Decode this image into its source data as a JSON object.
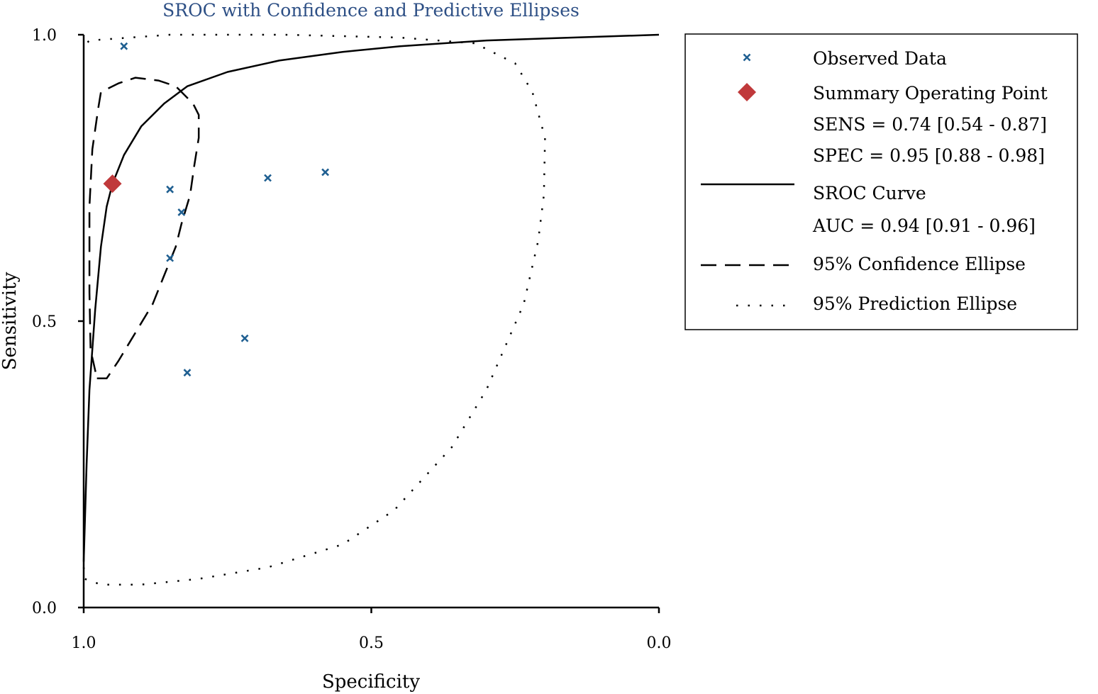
{
  "chart_data": {
    "type": "scatter",
    "title": "SROC with Confidence and Predictive Ellipses",
    "xlabel": "Specificity",
    "ylabel": "Sensitivity",
    "xlim": [
      1.0,
      0.0
    ],
    "ylim": [
      0.0,
      1.0
    ],
    "x_axis_reversed": true,
    "xticks": [
      "1.0",
      "0.5",
      "0.0"
    ],
    "yticks": [
      "0.0",
      "0.5",
      "1.0"
    ],
    "grid": false,
    "legend_position": "right",
    "colors": {
      "title": "#2d4f85",
      "observed": "#1f5f91",
      "summary": "#c0393b",
      "lines": "#000000"
    },
    "series": [
      {
        "name": "Observed Data",
        "type": "scatter",
        "marker": "x",
        "points": [
          {
            "spec": 0.93,
            "sens": 0.98
          },
          {
            "spec": 0.85,
            "sens": 0.73
          },
          {
            "spec": 0.83,
            "sens": 0.69
          },
          {
            "spec": 0.85,
            "sens": 0.61
          },
          {
            "spec": 0.68,
            "sens": 0.75
          },
          {
            "spec": 0.58,
            "sens": 0.76
          },
          {
            "spec": 0.72,
            "sens": 0.47
          },
          {
            "spec": 0.82,
            "sens": 0.41
          }
        ]
      },
      {
        "name": "Summary Operating Point",
        "type": "point",
        "marker": "diamond",
        "points": [
          {
            "spec": 0.95,
            "sens": 0.74
          }
        ]
      },
      {
        "name": "SROC Curve",
        "type": "line",
        "style": "solid",
        "points": [
          {
            "spec": 1.0,
            "sens": 0.08
          },
          {
            "spec": 0.995,
            "sens": 0.25
          },
          {
            "spec": 0.99,
            "sens": 0.38
          },
          {
            "spec": 0.98,
            "sens": 0.52
          },
          {
            "spec": 0.97,
            "sens": 0.63
          },
          {
            "spec": 0.96,
            "sens": 0.7
          },
          {
            "spec": 0.95,
            "sens": 0.74
          },
          {
            "spec": 0.93,
            "sens": 0.79
          },
          {
            "spec": 0.9,
            "sens": 0.84
          },
          {
            "spec": 0.86,
            "sens": 0.88
          },
          {
            "spec": 0.82,
            "sens": 0.91
          },
          {
            "spec": 0.75,
            "sens": 0.935
          },
          {
            "spec": 0.66,
            "sens": 0.955
          },
          {
            "spec": 0.55,
            "sens": 0.97
          },
          {
            "spec": 0.45,
            "sens": 0.98
          },
          {
            "spec": 0.3,
            "sens": 0.99
          },
          {
            "spec": 0.15,
            "sens": 0.995
          },
          {
            "spec": 0.0,
            "sens": 1.0
          }
        ]
      },
      {
        "name": "95% Confidence Ellipse",
        "type": "line",
        "style": "dashed",
        "points": [
          {
            "spec": 0.977,
            "sens": 0.4
          },
          {
            "spec": 0.96,
            "sens": 0.4
          },
          {
            "spec": 0.94,
            "sens": 0.43
          },
          {
            "spec": 0.91,
            "sens": 0.48
          },
          {
            "spec": 0.88,
            "sens": 0.53
          },
          {
            "spec": 0.86,
            "sens": 0.58
          },
          {
            "spec": 0.84,
            "sens": 0.63
          },
          {
            "spec": 0.83,
            "sens": 0.67
          },
          {
            "spec": 0.815,
            "sens": 0.72
          },
          {
            "spec": 0.808,
            "sens": 0.77
          },
          {
            "spec": 0.8,
            "sens": 0.82
          },
          {
            "spec": 0.8,
            "sens": 0.86
          },
          {
            "spec": 0.81,
            "sens": 0.88
          },
          {
            "spec": 0.84,
            "sens": 0.91
          },
          {
            "spec": 0.87,
            "sens": 0.92
          },
          {
            "spec": 0.91,
            "sens": 0.925
          },
          {
            "spec": 0.94,
            "sens": 0.915
          },
          {
            "spec": 0.97,
            "sens": 0.9
          },
          {
            "spec": 0.975,
            "sens": 0.87
          },
          {
            "spec": 0.985,
            "sens": 0.8
          },
          {
            "spec": 0.99,
            "sens": 0.7
          },
          {
            "spec": 0.99,
            "sens": 0.55
          },
          {
            "spec": 0.988,
            "sens": 0.45
          },
          {
            "spec": 0.977,
            "sens": 0.4
          }
        ]
      },
      {
        "name": "95% Prediction Ellipse",
        "type": "line",
        "style": "dotted",
        "points": [
          {
            "spec": 1.0,
            "sens": 0.07
          },
          {
            "spec": 0.998,
            "sens": 0.05
          },
          {
            "spec": 0.97,
            "sens": 0.04
          },
          {
            "spec": 0.9,
            "sens": 0.04
          },
          {
            "spec": 0.8,
            "sens": 0.05
          },
          {
            "spec": 0.68,
            "sens": 0.07
          },
          {
            "spec": 0.55,
            "sens": 0.11
          },
          {
            "spec": 0.46,
            "sens": 0.17
          },
          {
            "spec": 0.36,
            "sens": 0.28
          },
          {
            "spec": 0.3,
            "sens": 0.38
          },
          {
            "spec": 0.235,
            "sens": 0.53
          },
          {
            "spec": 0.21,
            "sens": 0.64
          },
          {
            "spec": 0.2,
            "sens": 0.72
          },
          {
            "spec": 0.198,
            "sens": 0.82
          },
          {
            "spec": 0.22,
            "sens": 0.9
          },
          {
            "spec": 0.25,
            "sens": 0.95
          },
          {
            "spec": 0.32,
            "sens": 0.985
          },
          {
            "spec": 0.45,
            "sens": 0.995
          },
          {
            "spec": 0.65,
            "sens": 1.0
          },
          {
            "spec": 0.85,
            "sens": 1.0
          },
          {
            "spec": 0.99,
            "sens": 0.99
          },
          {
            "spec": 1.0,
            "sens": 0.98
          }
        ]
      }
    ],
    "legend": {
      "observed": "Observed Data",
      "summary": "Summary Operating Point",
      "sens_text": "SENS = 0.74 [0.54 - 0.87]",
      "spec_text": "SPEC = 0.95 [0.88 - 0.98]",
      "sroc": "SROC Curve",
      "auc_text": "AUC = 0.94 [0.91 - 0.96]",
      "confidence": "95% Confidence Ellipse",
      "prediction": "95% Prediction Ellipse"
    }
  }
}
